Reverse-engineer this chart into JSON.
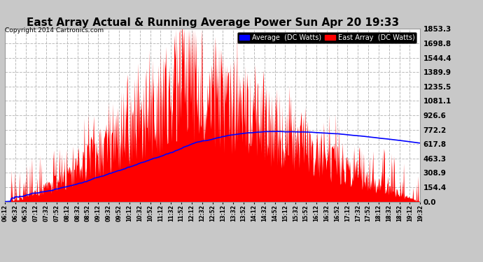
{
  "title": "East Array Actual & Running Average Power Sun Apr 20 19:33",
  "copyright": "Copyright 2014 Cartronics.com",
  "legend_labels": [
    "Average  (DC Watts)",
    "East Array  (DC Watts)"
  ],
  "legend_colors": [
    "#0000ff",
    "#ff0000"
  ],
  "background_color": "#c8c8c8",
  "plot_bg_color": "#ffffff",
  "y_ticks": [
    0.0,
    154.4,
    308.9,
    463.3,
    617.8,
    772.2,
    926.6,
    1081.1,
    1235.5,
    1389.9,
    1544.4,
    1698.8,
    1853.3
  ],
  "y_max": 1853.3,
  "x_labels": [
    "06:12",
    "06:32",
    "06:52",
    "07:12",
    "07:32",
    "07:52",
    "08:12",
    "08:32",
    "08:52",
    "09:12",
    "09:32",
    "09:52",
    "10:12",
    "10:32",
    "10:52",
    "11:12",
    "11:32",
    "11:52",
    "12:12",
    "12:32",
    "12:52",
    "13:12",
    "13:32",
    "13:52",
    "14:12",
    "14:32",
    "14:52",
    "15:12",
    "15:32",
    "15:52",
    "16:12",
    "16:32",
    "16:52",
    "17:12",
    "17:32",
    "17:52",
    "18:12",
    "18:32",
    "18:52",
    "19:12",
    "19:32"
  ],
  "grid_color": "#bbbbbb",
  "title_fontsize": 11,
  "tick_fontsize": 7.5,
  "xlabel_fontsize": 5.5
}
